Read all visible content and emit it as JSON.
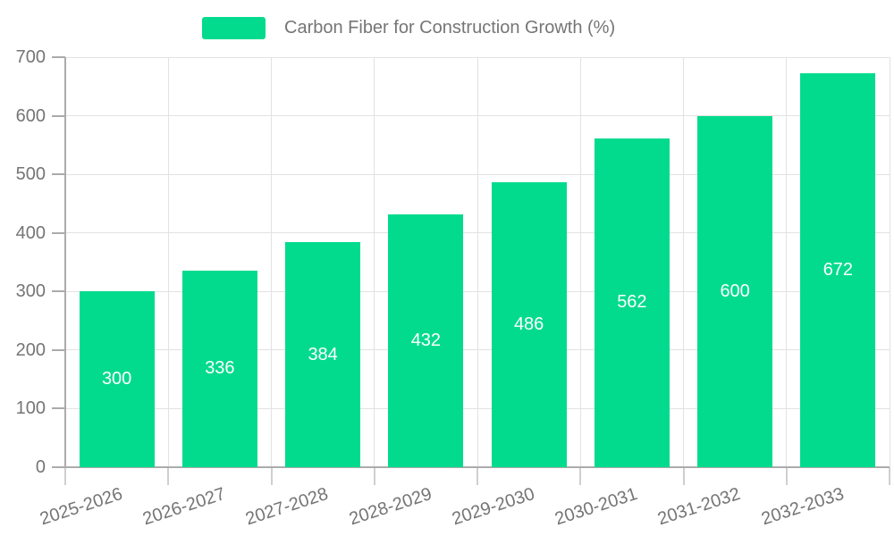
{
  "legend": {
    "label": "Carbon Fiber for Construction Growth (%)"
  },
  "chart_data": {
    "type": "bar",
    "title": "Carbon Fiber for Construction Growth (%)",
    "categories": [
      "2025-2026",
      "2026-2027",
      "2027-2028",
      "2028-2029",
      "2029-2030",
      "2030-2031",
      "2031-2032",
      "2032-2033"
    ],
    "values": [
      300,
      336,
      384,
      432,
      486,
      562,
      600,
      672
    ],
    "series": [
      {
        "name": "Carbon Fiber for Construction Growth (%)",
        "values": [
          300,
          336,
          384,
          432,
          486,
          562,
          600,
          672
        ]
      }
    ],
    "bar_value_labels": [
      "300",
      "336",
      "384",
      "432",
      "486",
      "562",
      "600",
      "672"
    ],
    "xlabel": "",
    "ylabel": "",
    "ylim": [
      0,
      700
    ],
    "yticks": [
      0,
      100,
      200,
      300,
      400,
      500,
      600,
      700
    ],
    "grid": true,
    "legend_position": "top-center",
    "x_label_rotation_deg": -18,
    "colors": {
      "bar": "#02DB8D",
      "grid": "#E2E2E2",
      "axis": "#ABABAB",
      "tick": "#CFCFCF",
      "text": "#757575",
      "bar_label": "#FFFFFF",
      "background": "#FFFFFF"
    }
  }
}
